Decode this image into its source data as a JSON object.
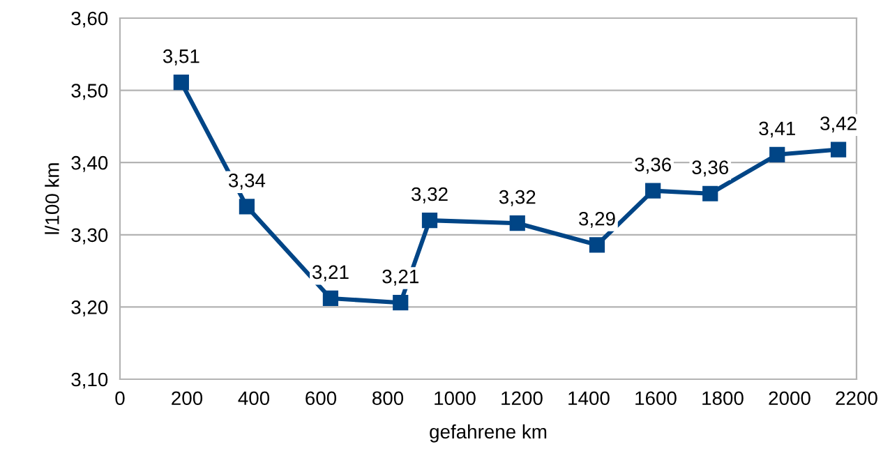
{
  "chart_data": {
    "type": "line",
    "xlabel": "gefahrene km",
    "ylabel": "l/100 km",
    "x": [
      183,
      379,
      629,
      838,
      925,
      1187,
      1425,
      1592,
      1763,
      1963,
      2146
    ],
    "series": [
      {
        "color": "#004586",
        "values": [
          3.511,
          3.339,
          3.212,
          3.206,
          3.32,
          3.316,
          3.286,
          3.361,
          3.357,
          3.411,
          3.418
        ],
        "value_labels": [
          "3,51",
          "3,34",
          "3,21",
          "3,21",
          "3,32",
          "3,32",
          "3,29",
          "3,36",
          "3,36",
          "3,41",
          "3,42"
        ]
      }
    ],
    "xlim": [
      0,
      2200
    ],
    "xticks": [
      0,
      200,
      400,
      600,
      800,
      1000,
      1200,
      1400,
      1600,
      1800,
      2000,
      2200
    ],
    "ylim": [
      3.1,
      3.6
    ],
    "yticks": [
      {
        "value": 3.1,
        "label": "3,10"
      },
      {
        "value": 3.2,
        "label": "3,20"
      },
      {
        "value": 3.3,
        "label": "3,30"
      },
      {
        "value": 3.4,
        "label": "3,40"
      },
      {
        "value": 3.5,
        "label": "3,50"
      },
      {
        "value": 3.6,
        "label": "3,60"
      }
    ],
    "grid": "y",
    "marker": "square",
    "line_style": "solid",
    "legend": false
  }
}
